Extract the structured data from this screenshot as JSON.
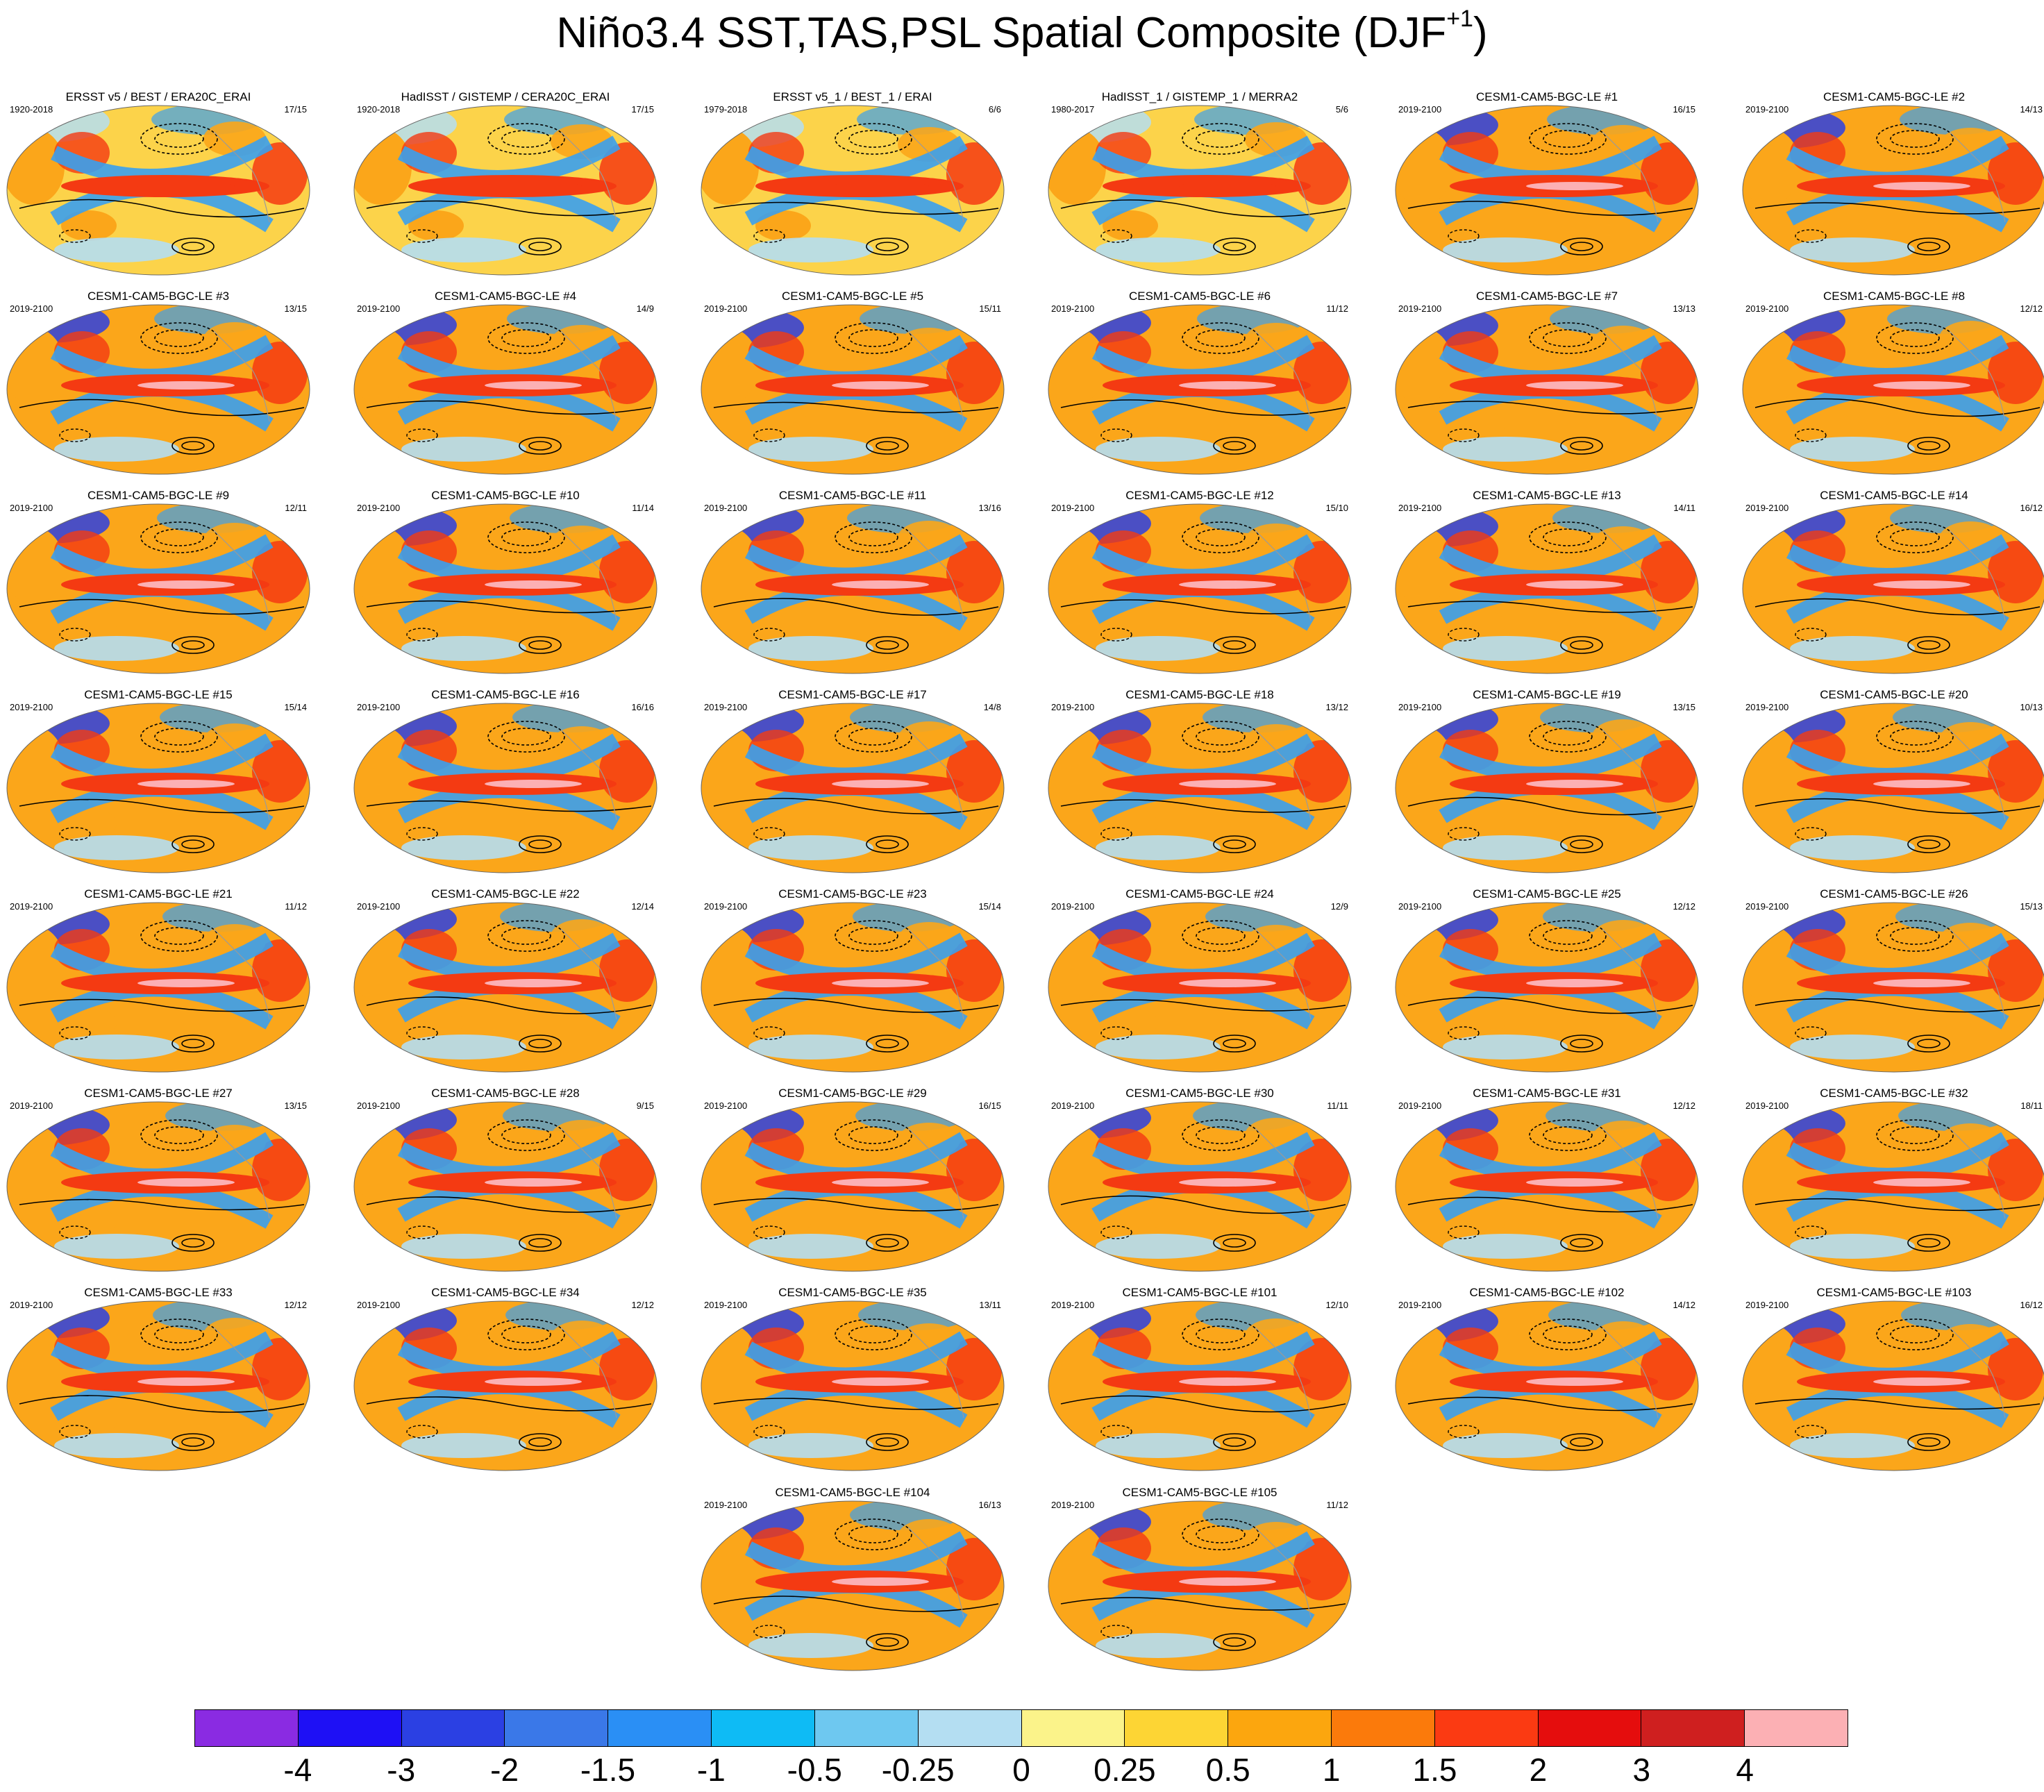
{
  "title": {
    "main": "Niño3.4 SST,TAS,PSL Spatial Composite (DJF",
    "sup": "+1",
    "close": ")"
  },
  "panels": [
    {
      "title": "ERSST v5 / BEST / ERA20C_ERAI",
      "years": "1920-2018",
      "counts": "17/15",
      "observed": true
    },
    {
      "title": "HadISST / GISTEMP / CERA20C_ERAI",
      "years": "1920-2018",
      "counts": "17/15",
      "observed": true
    },
    {
      "title": "ERSST v5_1 / BEST_1 / ERAI",
      "years": "1979-2018",
      "counts": "6/6",
      "observed": true
    },
    {
      "title": "HadISST_1 / GISTEMP_1 / MERRA2",
      "years": "1980-2017",
      "counts": "5/6",
      "observed": true
    },
    {
      "title": "CESM1-CAM5-BGC-LE #1",
      "years": "2019-2100",
      "counts": "16/15"
    },
    {
      "title": "CESM1-CAM5-BGC-LE #2",
      "years": "2019-2100",
      "counts": "14/13"
    },
    {
      "title": "CESM1-CAM5-BGC-LE #3",
      "years": "2019-2100",
      "counts": "13/15"
    },
    {
      "title": "CESM1-CAM5-BGC-LE #4",
      "years": "2019-2100",
      "counts": "14/9"
    },
    {
      "title": "CESM1-CAM5-BGC-LE #5",
      "years": "2019-2100",
      "counts": "15/11"
    },
    {
      "title": "CESM1-CAM5-BGC-LE #6",
      "years": "2019-2100",
      "counts": "11/12"
    },
    {
      "title": "CESM1-CAM5-BGC-LE #7",
      "years": "2019-2100",
      "counts": "13/13"
    },
    {
      "title": "CESM1-CAM5-BGC-LE #8",
      "years": "2019-2100",
      "counts": "12/12"
    },
    {
      "title": "CESM1-CAM5-BGC-LE #9",
      "years": "2019-2100",
      "counts": "12/11"
    },
    {
      "title": "CESM1-CAM5-BGC-LE #10",
      "years": "2019-2100",
      "counts": "11/14"
    },
    {
      "title": "CESM1-CAM5-BGC-LE #11",
      "years": "2019-2100",
      "counts": "13/16"
    },
    {
      "title": "CESM1-CAM5-BGC-LE #12",
      "years": "2019-2100",
      "counts": "15/10"
    },
    {
      "title": "CESM1-CAM5-BGC-LE #13",
      "years": "2019-2100",
      "counts": "14/11"
    },
    {
      "title": "CESM1-CAM5-BGC-LE #14",
      "years": "2019-2100",
      "counts": "16/12"
    },
    {
      "title": "CESM1-CAM5-BGC-LE #15",
      "years": "2019-2100",
      "counts": "15/14"
    },
    {
      "title": "CESM1-CAM5-BGC-LE #16",
      "years": "2019-2100",
      "counts": "16/16"
    },
    {
      "title": "CESM1-CAM5-BGC-LE #17",
      "years": "2019-2100",
      "counts": "14/8"
    },
    {
      "title": "CESM1-CAM5-BGC-LE #18",
      "years": "2019-2100",
      "counts": "13/12"
    },
    {
      "title": "CESM1-CAM5-BGC-LE #19",
      "years": "2019-2100",
      "counts": "13/15"
    },
    {
      "title": "CESM1-CAM5-BGC-LE #20",
      "years": "2019-2100",
      "counts": "10/13"
    },
    {
      "title": "CESM1-CAM5-BGC-LE #21",
      "years": "2019-2100",
      "counts": "11/12"
    },
    {
      "title": "CESM1-CAM5-BGC-LE #22",
      "years": "2019-2100",
      "counts": "12/14"
    },
    {
      "title": "CESM1-CAM5-BGC-LE #23",
      "years": "2019-2100",
      "counts": "15/14"
    },
    {
      "title": "CESM1-CAM5-BGC-LE #24",
      "years": "2019-2100",
      "counts": "12/9"
    },
    {
      "title": "CESM1-CAM5-BGC-LE #25",
      "years": "2019-2100",
      "counts": "12/12"
    },
    {
      "title": "CESM1-CAM5-BGC-LE #26",
      "years": "2019-2100",
      "counts": "15/13"
    },
    {
      "title": "CESM1-CAM5-BGC-LE #27",
      "years": "2019-2100",
      "counts": "13/15"
    },
    {
      "title": "CESM1-CAM5-BGC-LE #28",
      "years": "2019-2100",
      "counts": "9/15"
    },
    {
      "title": "CESM1-CAM5-BGC-LE #29",
      "years": "2019-2100",
      "counts": "16/15"
    },
    {
      "title": "CESM1-CAM5-BGC-LE #30",
      "years": "2019-2100",
      "counts": "11/11"
    },
    {
      "title": "CESM1-CAM5-BGC-LE #31",
      "years": "2019-2100",
      "counts": "12/12"
    },
    {
      "title": "CESM1-CAM5-BGC-LE #32",
      "years": "2019-2100",
      "counts": "18/11"
    },
    {
      "title": "CESM1-CAM5-BGC-LE #33",
      "years": "2019-2100",
      "counts": "12/12"
    },
    {
      "title": "CESM1-CAM5-BGC-LE #34",
      "years": "2019-2100",
      "counts": "12/12"
    },
    {
      "title": "CESM1-CAM5-BGC-LE #35",
      "years": "2019-2100",
      "counts": "13/11"
    },
    {
      "title": "CESM1-CAM5-BGC-LE #101",
      "years": "2019-2100",
      "counts": "12/10"
    },
    {
      "title": "CESM1-CAM5-BGC-LE #102",
      "years": "2019-2100",
      "counts": "14/12"
    },
    {
      "title": "CESM1-CAM5-BGC-LE #103",
      "years": "2019-2100",
      "counts": "16/12"
    },
    {
      "title": "CESM1-CAM5-BGC-LE #104",
      "years": "2019-2100",
      "counts": "16/13"
    },
    {
      "title": "CESM1-CAM5-BGC-LE #105",
      "years": "2019-2100",
      "counts": "11/12"
    }
  ],
  "colorbar": {
    "colors": [
      "#8a2be2",
      "#1e10f5",
      "#2b40e3",
      "#3a78e8",
      "#2a8ff5",
      "#0ebbf5",
      "#6ec8f0",
      "#b4def2",
      "#fbf38a",
      "#fdd534",
      "#fca60e",
      "#fb7a0b",
      "#fb3a12",
      "#e50d0d",
      "#cf1f1f",
      "#fcb0b4"
    ],
    "labels": [
      "-4",
      "-3",
      "-2",
      "-1.5",
      "-1",
      "-0.5",
      "-0.25",
      "0",
      "0.25",
      "0.5",
      "1",
      "1.5",
      "2",
      "3",
      "4"
    ]
  },
  "map_colors": {
    "ocean": "#fcd34a",
    "land": "#fba61a",
    "warm_tongue": "#f43a12",
    "warm_core": "#fcb0b4",
    "cold_flank": "#3aa0ee",
    "cold_deep": "#2b40e3",
    "light_blue": "#b4def2",
    "contour": "#000000",
    "coast": "#9a9a9a"
  }
}
